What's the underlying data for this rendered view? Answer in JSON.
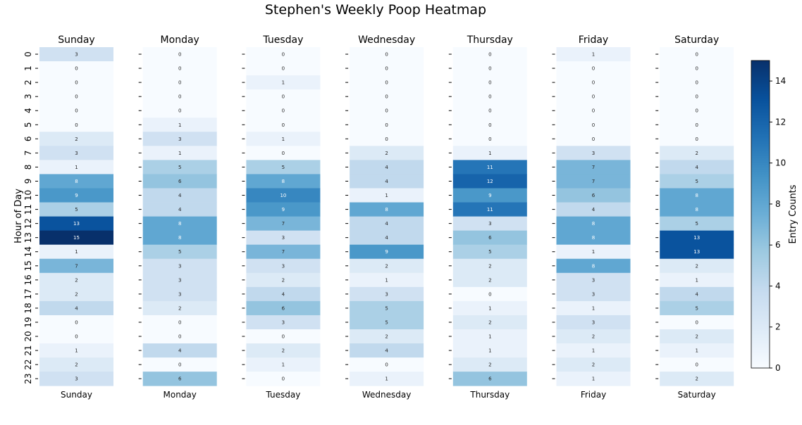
{
  "chart_data": {
    "type": "heatmap",
    "title": "Stephen's Weekly Poop Heatmap",
    "ylabel": "Hour of Day",
    "colorbar_label": "Entry Counts",
    "colormap": "Blues",
    "color_range": [
      0,
      15
    ],
    "colorbar_ticks": [
      "0",
      "2",
      "4",
      "6",
      "8",
      "10",
      "12",
      "14"
    ],
    "hours": [
      "0",
      "1",
      "2",
      "3",
      "4",
      "5",
      "6",
      "7",
      "8",
      "9",
      "10",
      "11",
      "12",
      "13",
      "14",
      "15",
      "16",
      "17",
      "18",
      "19",
      "20",
      "21",
      "22",
      "23"
    ],
    "days": [
      {
        "name": "Sunday",
        "values": [
          3,
          0,
          0,
          0,
          0,
          0,
          2,
          3,
          1,
          8,
          9,
          5,
          13,
          15,
          1,
          7,
          2,
          2,
          4,
          0,
          0,
          1,
          2,
          3
        ]
      },
      {
        "name": "Monday",
        "values": [
          0,
          0,
          0,
          0,
          0,
          1,
          3,
          1,
          5,
          6,
          4,
          4,
          8,
          8,
          5,
          3,
          3,
          3,
          2,
          0,
          0,
          4,
          0,
          6
        ]
      },
      {
        "name": "Tuesday",
        "values": [
          0,
          0,
          1,
          0,
          0,
          0,
          1,
          0,
          5,
          8,
          10,
          9,
          7,
          3,
          7,
          3,
          2,
          4,
          6,
          3,
          0,
          2,
          1,
          0
        ]
      },
      {
        "name": "Wednesday",
        "values": [
          0,
          0,
          0,
          0,
          0,
          0,
          0,
          2,
          4,
          4,
          1,
          8,
          4,
          4,
          9,
          2,
          1,
          3,
          5,
          5,
          2,
          4,
          0,
          1
        ]
      },
      {
        "name": "Thursday",
        "values": [
          0,
          0,
          0,
          0,
          0,
          0,
          0,
          1,
          11,
          12,
          9,
          11,
          3,
          6,
          5,
          2,
          2,
          0,
          1,
          2,
          1,
          1,
          2,
          6
        ]
      },
      {
        "name": "Friday",
        "values": [
          1,
          0,
          0,
          0,
          0,
          0,
          0,
          3,
          7,
          7,
          6,
          4,
          8,
          8,
          1,
          8,
          3,
          3,
          1,
          3,
          2,
          1,
          2,
          1
        ]
      },
      {
        "name": "Saturday",
        "values": [
          0,
          0,
          0,
          0,
          0,
          0,
          0,
          2,
          4,
          5,
          8,
          8,
          5,
          13,
          13,
          2,
          1,
          4,
          5,
          0,
          2,
          1,
          0,
          2
        ]
      }
    ]
  }
}
